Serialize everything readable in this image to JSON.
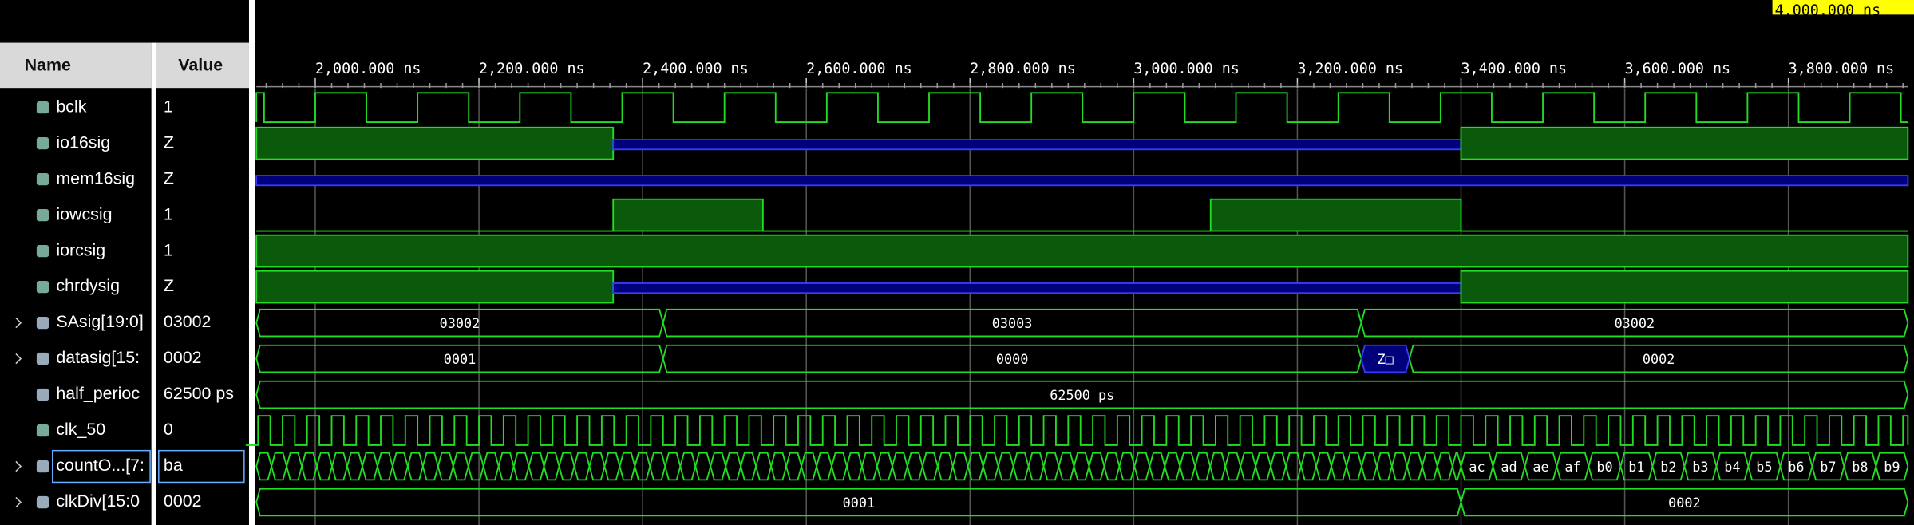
{
  "columns": {
    "name": "Name",
    "value": "Value"
  },
  "cursor_label": "4,000.000 ns",
  "timeline": {
    "xlim": [
      1928,
      3946
    ],
    "xticks": [
      {
        "value": 2000,
        "label": "2,000.000 ns"
      },
      {
        "value": 2200,
        "label": "2,200.000 ns"
      },
      {
        "value": 2400,
        "label": "2,400.000 ns"
      },
      {
        "value": 2600,
        "label": "2,600.000 ns"
      },
      {
        "value": 2800,
        "label": "2,800.000 ns"
      },
      {
        "value": 3000,
        "label": "3,000.000 ns"
      },
      {
        "value": 3200,
        "label": "3,200.000 ns"
      },
      {
        "value": 3400,
        "label": "3,400.000 ns"
      },
      {
        "value": 3600,
        "label": "3,600.000 ns"
      },
      {
        "value": 3800,
        "label": "3,800.000 ns"
      }
    ]
  },
  "signals": [
    {
      "name": "bclk",
      "value": "1",
      "kind": "clock",
      "clock": {
        "start": 2000,
        "period": 125,
        "high": 62.5
      }
    },
    {
      "name": "io16sig",
      "value": "Z",
      "kind": "bit",
      "segments": [
        {
          "t": 1928,
          "state": "1"
        },
        {
          "t": 2364,
          "state": "Z"
        },
        {
          "t": 3400,
          "state": "1"
        }
      ]
    },
    {
      "name": "mem16sig",
      "value": "Z",
      "kind": "bit",
      "segments": [
        {
          "t": 1928,
          "state": "Z"
        }
      ]
    },
    {
      "name": "iowcsig",
      "value": "1",
      "kind": "bit",
      "segments": [
        {
          "t": 1928,
          "state": "0"
        },
        {
          "t": 2364,
          "state": "1"
        },
        {
          "t": 2547,
          "state": "0"
        },
        {
          "t": 3094,
          "state": "1"
        },
        {
          "t": 3400,
          "state": "0"
        }
      ]
    },
    {
      "name": "iorcsig",
      "value": "1",
      "kind": "bit",
      "segments": [
        {
          "t": 1928,
          "state": "1"
        }
      ]
    },
    {
      "name": "chrdysig",
      "value": "Z",
      "kind": "bit",
      "segments": [
        {
          "t": 1928,
          "state": "1"
        },
        {
          "t": 2364,
          "state": "Z"
        },
        {
          "t": 3400,
          "state": "1"
        }
      ]
    },
    {
      "name": "SAsig[19:0]",
      "value": "03002",
      "kind": "bus",
      "expandable": true,
      "segments": [
        {
          "t": 1928,
          "label": "03002"
        },
        {
          "t": 2425,
          "label": "03003"
        },
        {
          "t": 3278,
          "label": "03002"
        }
      ]
    },
    {
      "name": "datasig[15:",
      "value": "0002",
      "kind": "bus",
      "expandable": true,
      "segments": [
        {
          "t": 1928,
          "label": "0001"
        },
        {
          "t": 2425,
          "label": "0000"
        },
        {
          "t": 3278,
          "label": "Z□",
          "state": "Z"
        },
        {
          "t": 3337,
          "label": "0002"
        }
      ]
    },
    {
      "name": "half_perioc",
      "value": "62500 ps",
      "kind": "bus",
      "segments": [
        {
          "t": 1928,
          "label": "62500 ps"
        }
      ]
    },
    {
      "name": "clk_50",
      "value": "0",
      "kind": "clock",
      "clock": {
        "start": 1930,
        "period": 30,
        "high": 15
      }
    },
    {
      "name": "countO...[7:",
      "value": "ba",
      "kind": "bus",
      "expandable": true,
      "selected": true,
      "pattern": {
        "start": 1928,
        "step": 18.5,
        "end": 3400
      },
      "segments": [
        {
          "t": 3400,
          "label": "ac"
        },
        {
          "t": 3439,
          "label": "ad"
        },
        {
          "t": 3478,
          "label": "ae"
        },
        {
          "t": 3517,
          "label": "af"
        },
        {
          "t": 3556,
          "label": "b0"
        },
        {
          "t": 3595,
          "label": "b1"
        },
        {
          "t": 3634,
          "label": "b2"
        },
        {
          "t": 3673,
          "label": "b3"
        },
        {
          "t": 3712,
          "label": "b4"
        },
        {
          "t": 3751,
          "label": "b5"
        },
        {
          "t": 3790,
          "label": "b6"
        },
        {
          "t": 3829,
          "label": "b7"
        },
        {
          "t": 3868,
          "label": "b8"
        },
        {
          "t": 3907,
          "label": "b9"
        }
      ]
    },
    {
      "name": "clkDiv[15:0",
      "value": "0002",
      "kind": "bus",
      "expandable": true,
      "segments": [
        {
          "t": 1928,
          "label": "0001"
        },
        {
          "t": 3400,
          "label": "0002"
        }
      ]
    }
  ]
}
